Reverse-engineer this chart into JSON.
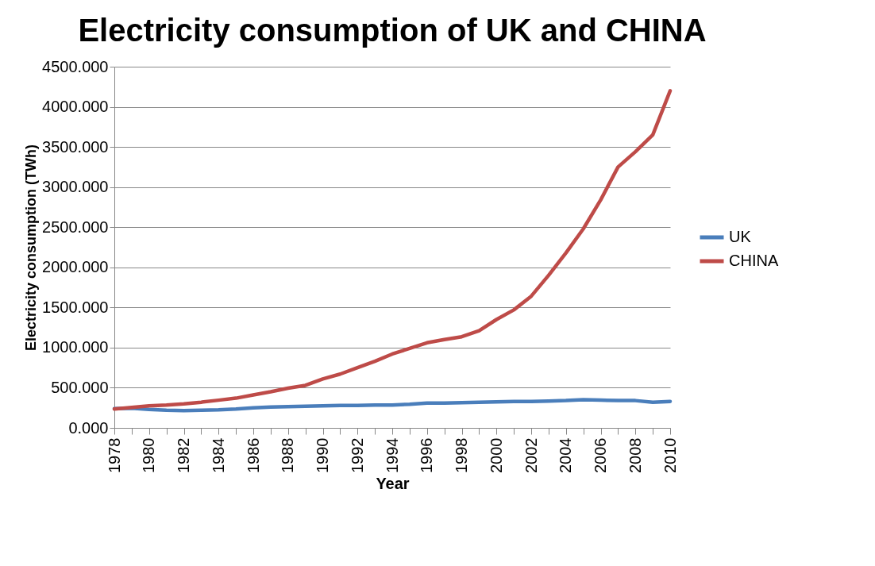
{
  "chart_data": {
    "type": "line",
    "title": "Electricity consumption of UK and CHINA",
    "xlabel": "Year",
    "ylabel": "Electricity consumption (TWh)",
    "x": [
      1978,
      1979,
      1980,
      1981,
      1982,
      1983,
      1984,
      1985,
      1986,
      1987,
      1988,
      1989,
      1990,
      1991,
      1992,
      1993,
      1994,
      1995,
      1996,
      1997,
      1998,
      1999,
      2000,
      2001,
      2002,
      2003,
      2004,
      2005,
      2006,
      2007,
      2008,
      2009,
      2010
    ],
    "series": [
      {
        "name": "UK",
        "color": "#4a7ebb",
        "values": [
          240,
          245,
          230,
          220,
          215,
          220,
          225,
          235,
          250,
          260,
          265,
          270,
          275,
          280,
          280,
          285,
          285,
          295,
          310,
          310,
          315,
          320,
          325,
          330,
          330,
          335,
          340,
          350,
          345,
          340,
          340,
          320,
          330
        ]
      },
      {
        "name": "CHINA",
        "color": "#be4b48",
        "values": [
          235,
          255,
          275,
          285,
          300,
          320,
          345,
          370,
          410,
          450,
          495,
          530,
          610,
          670,
          750,
          830,
          920,
          990,
          1060,
          1100,
          1135,
          1210,
          1350,
          1470,
          1640,
          1900,
          2180,
          2480,
          2840,
          3250,
          3440,
          3650,
          4200
        ]
      }
    ],
    "xlim": [
      1978,
      2010
    ],
    "xticks": [
      1978,
      {
        "value": 1979,
        "label": null
      },
      1980,
      {
        "value": 1981,
        "label": null
      },
      1982,
      {
        "value": 1983,
        "label": null
      },
      1984,
      {
        "value": 1985,
        "label": null
      },
      1986,
      {
        "value": 1987,
        "label": null
      },
      1988,
      {
        "value": 1989,
        "label": null
      },
      1990,
      {
        "value": 1991,
        "label": null
      },
      1992,
      {
        "value": 1993,
        "label": null
      },
      1994,
      {
        "value": 1995,
        "label": null
      },
      1996,
      {
        "value": 1997,
        "label": null
      },
      1998,
      {
        "value": 1999,
        "label": null
      },
      2000,
      {
        "value": 2001,
        "label": null
      },
      2002,
      {
        "value": 2003,
        "label": null
      },
      2004,
      {
        "value": 2005,
        "label": null
      },
      2006,
      {
        "value": 2007,
        "label": null
      },
      2008,
      {
        "value": 2009,
        "label": null
      },
      2010
    ],
    "ylim": [
      0,
      4500
    ],
    "yticks": [
      {
        "value": 0,
        "label": "0.000"
      },
      {
        "value": 500,
        "label": "500.000"
      },
      {
        "value": 1000,
        "label": "1000.000"
      },
      {
        "value": 1500,
        "label": "1500.000"
      },
      {
        "value": 2000,
        "label": "2000.000"
      },
      {
        "value": 2500,
        "label": "2500.000"
      },
      {
        "value": 3000,
        "label": "3000.000"
      },
      {
        "value": 3500,
        "label": "3500.000"
      },
      {
        "value": 4000,
        "label": "4000.000"
      },
      {
        "value": 4500,
        "label": "4500.000"
      }
    ],
    "grid": "y",
    "legend": "right",
    "marker": "none",
    "line_style": "solid"
  }
}
